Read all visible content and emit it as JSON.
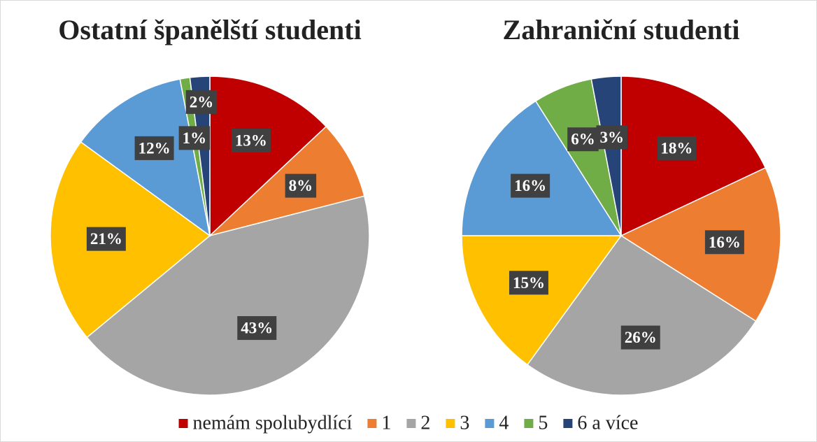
{
  "legend": {
    "categories": [
      "nemám spolubydlící",
      "1",
      "2",
      "3",
      "4",
      "5",
      "6 a více"
    ],
    "colors": [
      "#c00000",
      "#ed7d31",
      "#a5a5a5",
      "#ffc000",
      "#5b9bd5",
      "#70ad47",
      "#264478"
    ]
  },
  "chart_data": [
    {
      "type": "pie",
      "title": "Ostatní španělští studenti",
      "values": [
        13,
        8,
        43,
        21,
        12,
        1,
        2
      ],
      "value_labels": [
        "13%",
        "8%",
        "43%",
        "21%",
        "12%",
        "1%",
        "2%"
      ]
    },
    {
      "type": "pie",
      "title": "Zahraniční studenti",
      "values": [
        18,
        16,
        26,
        15,
        16,
        6,
        3
      ],
      "value_labels": [
        "18%",
        "16%",
        "26%",
        "15%",
        "16%",
        "6%",
        "3%"
      ]
    }
  ]
}
